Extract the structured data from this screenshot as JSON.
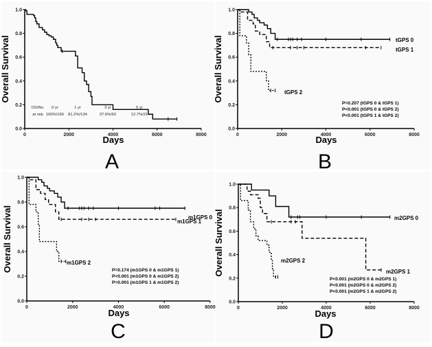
{
  "chart_data": [
    {
      "type": "line",
      "panel_letter": "A",
      "xlabel": "Days",
      "ylabel": "Overall Survival",
      "xlim": [
        0,
        8000
      ],
      "ylim": [
        0,
        1
      ],
      "xticks": [
        "0",
        "2000",
        "4000",
        "6000",
        "8000"
      ],
      "yticks": [
        "0.0",
        "0.2",
        "0.4",
        "0.6",
        "0.8",
        "1.0"
      ],
      "series": [
        {
          "style": "solid",
          "steps": [
            [
              0,
              1
            ],
            [
              50,
              0.99
            ],
            [
              100,
              0.96
            ],
            [
              400,
              0.95
            ],
            [
              450,
              0.93
            ],
            [
              500,
              0.9
            ],
            [
              550,
              0.88
            ],
            [
              650,
              0.85
            ],
            [
              800,
              0.83
            ],
            [
              900,
              0.81
            ],
            [
              1000,
              0.79
            ],
            [
              1100,
              0.78
            ],
            [
              1200,
              0.77
            ],
            [
              1300,
              0.75
            ],
            [
              1400,
              0.72
            ],
            [
              1450,
              0.7
            ],
            [
              1500,
              0.68
            ],
            [
              1650,
              0.65
            ],
            [
              2300,
              0.61
            ],
            [
              2400,
              0.51
            ],
            [
              2600,
              0.47
            ],
            [
              2700,
              0.4
            ],
            [
              2800,
              0.37
            ],
            [
              2900,
              0.31
            ],
            [
              3000,
              0.27
            ],
            [
              3050,
              0.2
            ],
            [
              4000,
              0.16
            ],
            [
              5600,
              0.12
            ],
            [
              5800,
              0.08
            ],
            [
              6900,
              0.08
            ]
          ],
          "censored": [
            1700,
            6500,
            6900
          ]
        }
      ],
      "table": {
        "rows": [
          [
            "OS/No.",
            "0 yr",
            "1 yr",
            "3 yr",
            "5 yr"
          ],
          [
            "at risk",
            "100%/165",
            "81.2%/134",
            "37.6%/62",
            "12.7%/21"
          ]
        ]
      }
    },
    {
      "type": "line",
      "panel_letter": "B",
      "xlabel": "Days",
      "ylabel": "Overall Survival",
      "xlim": [
        0,
        8000
      ],
      "ylim": [
        0,
        1
      ],
      "xticks": [
        "0",
        "2000",
        "4000",
        "6000",
        "8000"
      ],
      "yticks": [
        "0.0",
        "0.2",
        "0.4",
        "0.6",
        "0.8",
        "1.0"
      ],
      "series": [
        {
          "name": "tGPS 0",
          "style": "solid",
          "steps": [
            [
              0,
              1
            ],
            [
              500,
              0.98
            ],
            [
              650,
              0.96
            ],
            [
              750,
              0.93
            ],
            [
              900,
              0.91
            ],
            [
              1000,
              0.89
            ],
            [
              1200,
              0.87
            ],
            [
              1350,
              0.84
            ],
            [
              1500,
              0.8
            ],
            [
              1700,
              0.75
            ],
            [
              6900,
              0.75
            ]
          ],
          "censored": [
            1800,
            2300,
            2400,
            2500,
            2700,
            2900,
            4000,
            5600,
            6900
          ]
        },
        {
          "name": "tGPS 1",
          "style": "dashed",
          "steps": [
            [
              0,
              1
            ],
            [
              100,
              0.98
            ],
            [
              450,
              0.91
            ],
            [
              700,
              0.88
            ],
            [
              800,
              0.82
            ],
            [
              1000,
              0.79
            ],
            [
              1300,
              0.73
            ],
            [
              1450,
              0.68
            ],
            [
              6500,
              0.68
            ]
          ],
          "censored": [
            1600,
            2400,
            2700,
            3000,
            5800,
            6500
          ]
        },
        {
          "name": "tGPS 2",
          "style": "dotted",
          "steps": [
            [
              0,
              1
            ],
            [
              100,
              0.78
            ],
            [
              400,
              0.72
            ],
            [
              500,
              0.62
            ],
            [
              600,
              0.48
            ],
            [
              1300,
              0.4
            ],
            [
              1400,
              0.32
            ],
            [
              1700,
              0.32
            ]
          ],
          "censored": [
            1500,
            1700
          ]
        }
      ],
      "annotations": [
        "P=0.207 (tGPS 0 & tGPS 1)",
        "P<0.001 (tGPS 0 & tGPS 2)",
        "P<0.001 (tGPS 1 & tGPS 2)"
      ]
    },
    {
      "type": "line",
      "panel_letter": "C",
      "xlabel": "Days",
      "ylabel": "Overall Survival",
      "xlim": [
        0,
        8000
      ],
      "ylim": [
        0,
        1
      ],
      "xticks": [
        "0",
        "2000",
        "4000",
        "6000",
        "8000"
      ],
      "yticks": [
        "0.0",
        "0.2",
        "0.4",
        "0.6",
        "0.8",
        "1.0"
      ],
      "series": [
        {
          "name": "m1GPS 0",
          "style": "solid",
          "steps": [
            [
              0,
              1
            ],
            [
              500,
              0.98
            ],
            [
              650,
              0.96
            ],
            [
              750,
              0.93
            ],
            [
              900,
              0.91
            ],
            [
              1000,
              0.89
            ],
            [
              1200,
              0.87
            ],
            [
              1350,
              0.84
            ],
            [
              1500,
              0.8
            ],
            [
              1650,
              0.75
            ],
            [
              6900,
              0.75
            ]
          ],
          "censored": [
            1800,
            2300,
            2400,
            2500,
            2700,
            2900,
            4000,
            5600,
            5800,
            6900
          ]
        },
        {
          "name": "m1GPS 1",
          "style": "dashed",
          "steps": [
            [
              0,
              1
            ],
            [
              100,
              0.98
            ],
            [
              400,
              0.9
            ],
            [
              600,
              0.87
            ],
            [
              800,
              0.82
            ],
            [
              950,
              0.78
            ],
            [
              1250,
              0.72
            ],
            [
              1400,
              0.66
            ],
            [
              6500,
              0.66
            ]
          ],
          "censored": [
            1500,
            2400,
            2700,
            3000,
            6500
          ]
        },
        {
          "name": "m1GPS 2",
          "style": "dotted",
          "steps": [
            [
              0,
              1
            ],
            [
              100,
              0.78
            ],
            [
              400,
              0.72
            ],
            [
              500,
              0.62
            ],
            [
              550,
              0.48
            ],
            [
              1300,
              0.4
            ],
            [
              1400,
              0.32
            ],
            [
              1700,
              0.32
            ]
          ],
          "censored": [
            1500,
            1700
          ]
        }
      ],
      "annotations": [
        "P=0.174 (m1GPS 0 & m1GPS 1)",
        "P<0.001 (m1GPS 0 & m1GPS 2)",
        "P=0.001 (m1GPS 1 & m1GPS 2)"
      ]
    },
    {
      "type": "line",
      "panel_letter": "D",
      "xlabel": "Days",
      "ylabel": "Overall Survival",
      "xlim": [
        0,
        8000
      ],
      "ylim": [
        0,
        1
      ],
      "xticks": [
        "0",
        "2000",
        "4000",
        "6000",
        "8000"
      ],
      "yticks": [
        "0.0",
        "0.2",
        "0.4",
        "0.6",
        "0.8",
        "1.0"
      ],
      "series": [
        {
          "name": "m2GPS 0",
          "style": "solid",
          "steps": [
            [
              0,
              1
            ],
            [
              600,
              0.95
            ],
            [
              1400,
              0.9
            ],
            [
              1700,
              0.81
            ],
            [
              2300,
              0.72
            ],
            [
              6900,
              0.72
            ]
          ],
          "censored": [
            2400,
            2700,
            2800,
            4000,
            5600,
            6900
          ]
        },
        {
          "name": "m2GPS 1",
          "style": "dashed",
          "steps": [
            [
              0,
              1
            ],
            [
              400,
              0.94
            ],
            [
              550,
              0.91
            ],
            [
              900,
              0.88
            ],
            [
              1000,
              0.8
            ],
            [
              1100,
              0.75
            ],
            [
              1300,
              0.68
            ],
            [
              2900,
              0.54
            ],
            [
              5800,
              0.27
            ],
            [
              6500,
              0.27
            ]
          ],
          "censored": [
            1500,
            2400,
            2600,
            6500
          ]
        },
        {
          "name": "m2GPS 2",
          "style": "dotted",
          "steps": [
            [
              0,
              1
            ],
            [
              100,
              0.86
            ],
            [
              450,
              0.78
            ],
            [
              550,
              0.68
            ],
            [
              700,
              0.62
            ],
            [
              800,
              0.56
            ],
            [
              900,
              0.52
            ],
            [
              1300,
              0.48
            ],
            [
              1400,
              0.42
            ],
            [
              1500,
              0.35
            ],
            [
              1550,
              0.28
            ],
            [
              1600,
              0.21
            ],
            [
              1800,
              0.21
            ]
          ],
          "censored": [
            1700,
            1800
          ]
        }
      ],
      "annotations": [
        "P<0.001 (m2GPS 0 & m2GPS 1)",
        "P<0.001 (m2GPS 0 & m2GPS 2)",
        "P<0.001 (m2GPS 1 & m2GPS 2)"
      ]
    }
  ]
}
